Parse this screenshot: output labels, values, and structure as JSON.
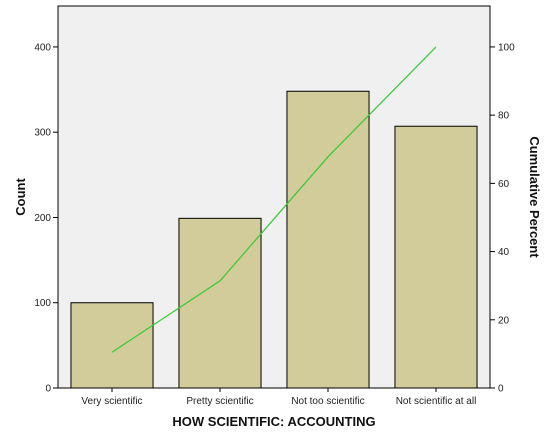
{
  "chart_data": {
    "type": "bar",
    "categories": [
      "Very scientific",
      "Pretty scientific",
      "Not too scientific",
      "Not scientific at all"
    ],
    "values": [
      100,
      199,
      348,
      307
    ],
    "xlabel": "HOW SCIENTIFIC: ACCOUNTING",
    "ylabel": "Count",
    "y2label": "Cumulative Percent",
    "ylim": [
      0,
      448
    ],
    "yticks": [
      0,
      100,
      200,
      300,
      400
    ],
    "y2lim": [
      0,
      112
    ],
    "y2ticks": [
      0,
      20,
      40,
      60,
      80,
      100
    ],
    "cumulative_line": {
      "type": "line",
      "axis": "right",
      "values": [
        10.5,
        31.4,
        67.8,
        100
      ]
    },
    "grid": false,
    "legend": "none",
    "colors": {
      "plot_background": "#f0f0f0",
      "bar_fill": "#d2cb9a",
      "bar_stroke": "#000000",
      "line": "#33cc33"
    }
  }
}
